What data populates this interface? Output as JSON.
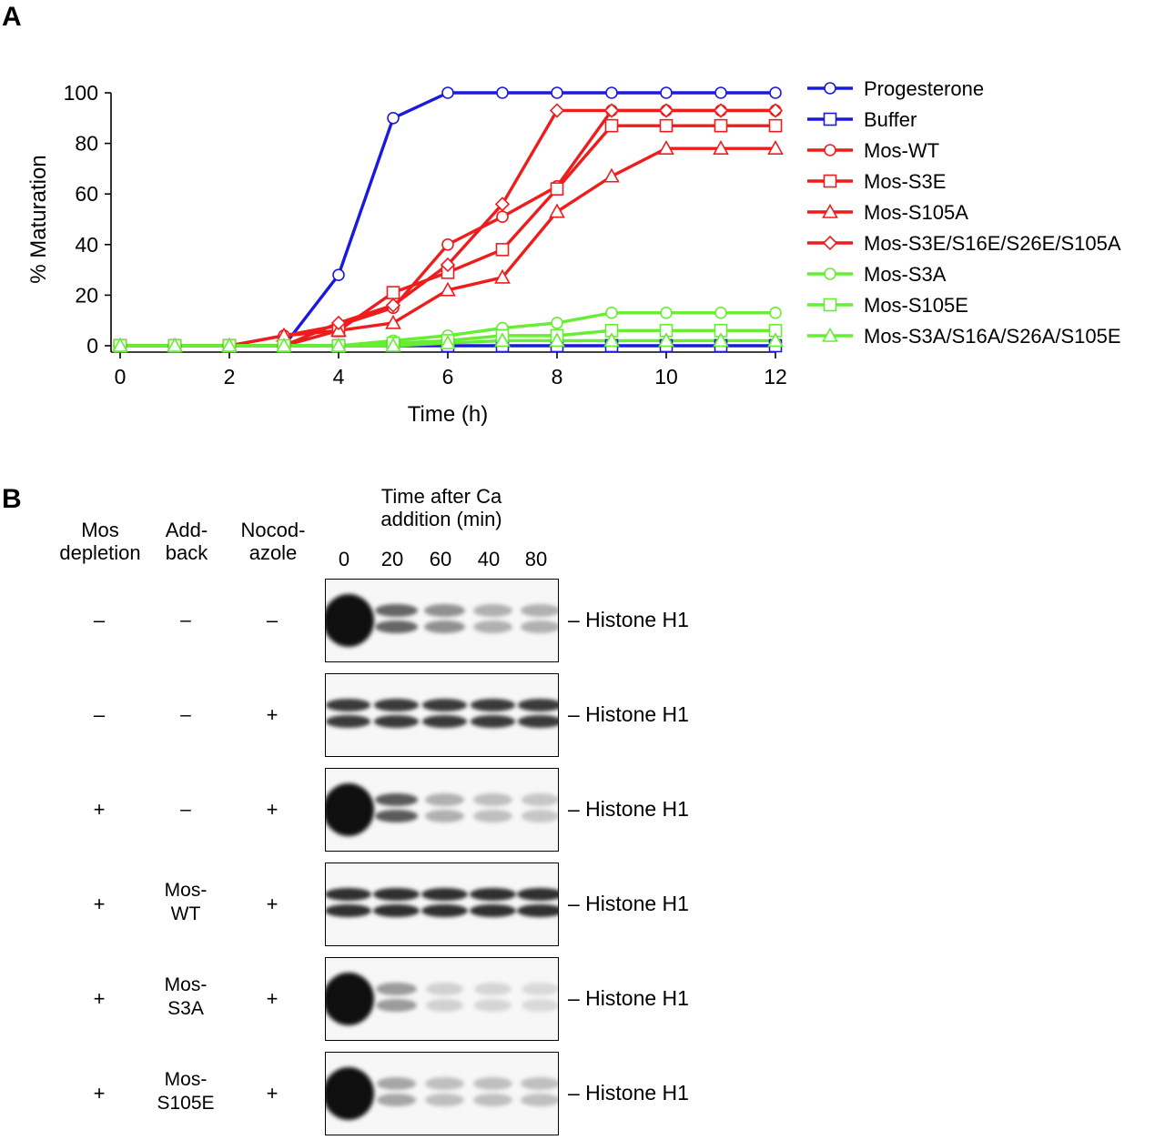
{
  "panelA": {
    "letter": "A",
    "chart_data": {
      "type": "line",
      "xlabel": "Time (h)",
      "ylabel": "% Maturation",
      "xlim": [
        0,
        12
      ],
      "ylim": [
        0,
        100
      ],
      "xticks": [
        0,
        2,
        4,
        6,
        8,
        10,
        12
      ],
      "yticks": [
        0,
        20,
        40,
        60,
        80,
        100
      ],
      "legend_position": "right",
      "x": [
        0,
        1,
        2,
        3,
        4,
        5,
        6,
        7,
        8,
        9,
        10,
        11,
        12
      ],
      "series": [
        {
          "name": "Progesterone",
          "color": "#1a1adc",
          "marker": "circle",
          "values": [
            0,
            0,
            0,
            0,
            28,
            90,
            100,
            100,
            100,
            100,
            100,
            100,
            100
          ]
        },
        {
          "name": "Buffer",
          "color": "#1a1adc",
          "marker": "square",
          "values": [
            0,
            0,
            0,
            0,
            0,
            0,
            0,
            0,
            0,
            0,
            0,
            0,
            0
          ]
        },
        {
          "name": "Mos-WT",
          "color": "#ee1c1c",
          "marker": "circle",
          "values": [
            0,
            0,
            0,
            4,
            8,
            15,
            40,
            51,
            63,
            93,
            93,
            93,
            93
          ]
        },
        {
          "name": "Mos-S3E",
          "color": "#ee1c1c",
          "marker": "square",
          "values": [
            0,
            0,
            0,
            0,
            6,
            21,
            29,
            38,
            62,
            87,
            87,
            87,
            87
          ]
        },
        {
          "name": "Mos-S105A",
          "color": "#ee1c1c",
          "marker": "triangle",
          "values": [
            0,
            0,
            0,
            4,
            6,
            9,
            22,
            27,
            53,
            67,
            78,
            78,
            78
          ]
        },
        {
          "name": "Mos-S3E/S16E/S26E/S105A",
          "color": "#ee1c1c",
          "marker": "diamond",
          "values": [
            0,
            0,
            0,
            0,
            9,
            16,
            32,
            56,
            93,
            93,
            93,
            93,
            93
          ]
        },
        {
          "name": "Mos-S3A",
          "color": "#66ee33",
          "marker": "circle",
          "values": [
            0,
            0,
            0,
            0,
            0,
            2,
            4,
            7,
            9,
            13,
            13,
            13,
            13
          ]
        },
        {
          "name": "Mos-S105E",
          "color": "#66ee33",
          "marker": "square",
          "values": [
            0,
            0,
            0,
            0,
            0,
            1,
            2,
            4,
            4,
            6,
            6,
            6,
            6
          ]
        },
        {
          "name": "Mos-S3A/S16A/S26A/S105E",
          "color": "#66ee33",
          "marker": "triangle",
          "values": [
            0,
            0,
            0,
            0,
            0,
            0,
            1,
            2,
            2,
            2,
            2,
            2,
            2
          ]
        }
      ]
    }
  },
  "panelB": {
    "letter": "B",
    "header_time_line1": "Time after Ca",
    "header_time_line2": "addition (min)",
    "col_mos_line1": "Mos",
    "col_mos_line2": "depletion",
    "col_add_line1": "Add-",
    "col_add_line2": "back",
    "col_noc_line1": "Nocod-",
    "col_noc_line2": "azole",
    "lanes": [
      "0",
      "20",
      "60",
      "40",
      "80"
    ],
    "rows": [
      {
        "mos": "–",
        "add1": "–",
        "add2": "",
        "noc": "–",
        "label": "– Histone H1",
        "intensity": [
          1.0,
          0.6,
          0.4,
          0.25,
          0.25
        ]
      },
      {
        "mos": "–",
        "add1": "–",
        "add2": "",
        "noc": "+",
        "label": "– Histone H1",
        "intensity": [
          0.8,
          0.8,
          0.8,
          0.8,
          0.8
        ]
      },
      {
        "mos": "+",
        "add1": "–",
        "add2": "",
        "noc": "+",
        "label": "– Histone H1",
        "intensity": [
          1.0,
          0.65,
          0.25,
          0.18,
          0.15
        ]
      },
      {
        "mos": "+",
        "add1": "Mos-",
        "add2": "WT",
        "noc": "+",
        "label": "– Histone H1",
        "intensity": [
          0.85,
          0.85,
          0.85,
          0.85,
          0.85
        ]
      },
      {
        "mos": "+",
        "add1": "Mos-",
        "add2": "S3A",
        "noc": "+",
        "label": "– Histone H1",
        "intensity": [
          1.0,
          0.35,
          0.1,
          0.08,
          0.06
        ]
      },
      {
        "mos": "+",
        "add1": "Mos-",
        "add2": "S105E",
        "noc": "+",
        "label": "– Histone H1",
        "intensity": [
          1.0,
          0.3,
          0.18,
          0.18,
          0.18
        ]
      }
    ]
  }
}
